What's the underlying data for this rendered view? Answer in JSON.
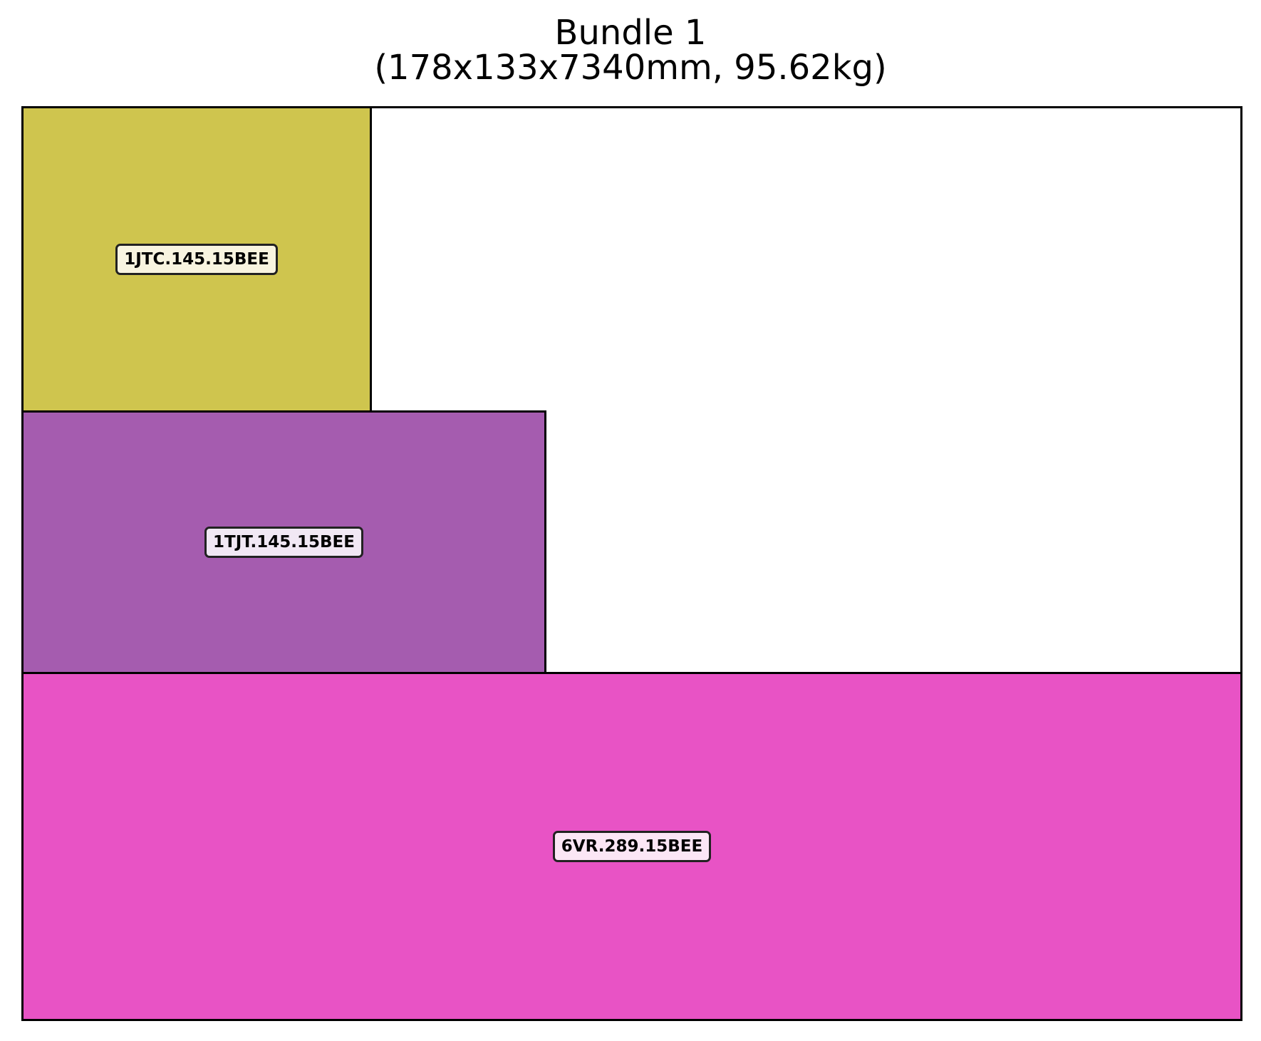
{
  "title": {
    "line1": "Bundle 1",
    "line2": "(178x133x7340mm, 95.62kg)"
  },
  "pieces": [
    {
      "label": "1JTC.145.15BEE",
      "color": "#cfc54e"
    },
    {
      "label": "1TJT.145.15BEE",
      "color": "#a55caf"
    },
    {
      "label": "6VR.289.15BEE",
      "color": "#e853c5"
    }
  ],
  "colors": {
    "frame_border": "#000000",
    "background": "#ffffff"
  }
}
